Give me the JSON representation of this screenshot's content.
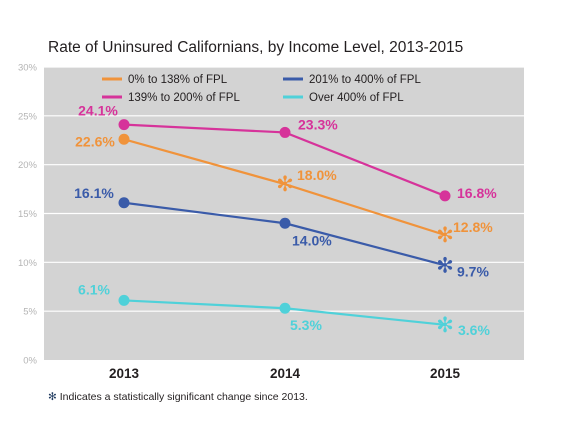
{
  "chart_data": {
    "type": "line",
    "title": "Rate of Uninsured Californians, by Income Level, 2013-2015",
    "x": [
      "2013",
      "2014",
      "2015"
    ],
    "ylim": [
      0,
      30
    ],
    "yticks": [
      "0%",
      "5%",
      "10%",
      "15%",
      "20%",
      "25%",
      "30%"
    ],
    "grid": true,
    "legend_position": "top",
    "background": "#d3d3d3",
    "series": [
      {
        "name": "0% to 138% of FPL",
        "color": "#f0933b",
        "values": [
          22.6,
          18.0,
          12.8
        ],
        "labels": [
          "22.6%",
          "18.0%",
          "12.8%"
        ],
        "significant": [
          false,
          true,
          true
        ]
      },
      {
        "name": "139% to 200% of FPL",
        "color": "#d6339a",
        "values": [
          24.1,
          23.3,
          16.8
        ],
        "labels": [
          "24.1%",
          "23.3%",
          "16.8%"
        ],
        "significant": [
          false,
          false,
          false
        ]
      },
      {
        "name": "201% to 400% of FPL",
        "color": "#3a5ba9",
        "values": [
          16.1,
          14.0,
          9.7
        ],
        "labels": [
          "16.1%",
          "14.0%",
          "9.7%"
        ],
        "significant": [
          false,
          false,
          true
        ]
      },
      {
        "name": "Over 400% of FPL",
        "color": "#4fd1d9",
        "values": [
          6.1,
          5.3,
          3.6
        ],
        "labels": [
          "6.1%",
          "5.3%",
          "3.6%"
        ],
        "significant": [
          false,
          false,
          true
        ]
      }
    ]
  },
  "footnote": {
    "symbol": "✻",
    "text": "Indicates a statistically significant change since 2013."
  }
}
